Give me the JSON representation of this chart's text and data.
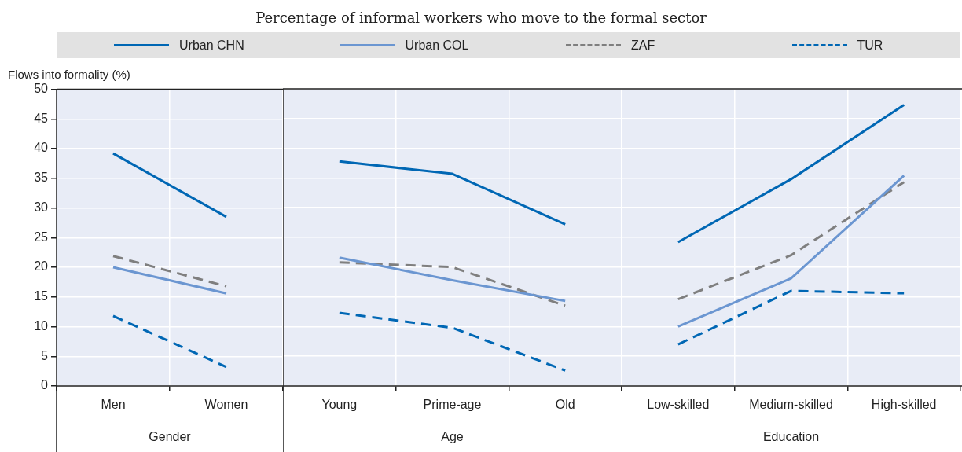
{
  "chart_data": [
    {
      "type": "line",
      "ylabel": "Flows into formality (%)",
      "xlabel": "Gender",
      "categories": [
        "Men",
        "Women"
      ],
      "ylim": [
        0,
        50
      ],
      "yticks": [
        0,
        5,
        10,
        15,
        20,
        25,
        30,
        35,
        40,
        45,
        50
      ],
      "grid": true,
      "legend": "top",
      "marker": "none",
      "series": [
        {
          "name": "Urban CHN",
          "color": "#0067b4",
          "line_style": "solid",
          "values": [
            39.2,
            28.5
          ]
        },
        {
          "name": "Urban COL",
          "color": "#6b96d1",
          "line_style": "solid",
          "values": [
            20.0,
            15.6
          ]
        },
        {
          "name": "ZAF",
          "color": "#7f7f7f",
          "line_style": "dashed",
          "values": [
            21.9,
            16.8
          ]
        },
        {
          "name": "TUR",
          "color": "#0067b4",
          "line_style": "dashed",
          "values": [
            11.8,
            3.2
          ]
        }
      ]
    },
    {
      "type": "line",
      "subtitle": "Percentage of informal workers who move to the formal sector",
      "xlabel": "Age",
      "categories": [
        "Young",
        "Prime-age",
        "Old"
      ],
      "ylim": [
        0,
        50
      ],
      "yticks": [
        0,
        5,
        10,
        15,
        20,
        25,
        30,
        35,
        40,
        45,
        50
      ],
      "grid": true,
      "tick_labels": "x",
      "marker": "none",
      "series": [
        {
          "color": "#0067b4",
          "line_style": "solid",
          "values": [
            37.8,
            35.7,
            27.2
          ]
        },
        {
          "color": "#6b96d1",
          "line_style": "solid",
          "values": [
            21.6,
            17.8,
            14.3
          ]
        },
        {
          "color": "#7f7f7f",
          "line_style": "dashed",
          "values": [
            20.8,
            20.0,
            13.5
          ]
        },
        {
          "color": "#0067b4",
          "line_style": "dashed",
          "values": [
            12.3,
            9.8,
            2.6
          ]
        }
      ]
    },
    {
      "type": "line",
      "xlabel": "Education",
      "categories": [
        "Low-skilled",
        "Medium-skilled",
        "High-skilled"
      ],
      "ylim": [
        0,
        50
      ],
      "yticks": [
        0,
        5,
        10,
        15,
        20,
        25,
        30,
        35,
        40,
        45,
        50
      ],
      "grid": true,
      "tick_labels": "x",
      "marker": "none",
      "series": [
        {
          "color": "#0067b4",
          "line_style": "solid",
          "values": [
            24.2,
            34.8,
            47.3
          ]
        },
        {
          "color": "#6b96d1",
          "line_style": "solid",
          "values": [
            10.0,
            18.1,
            35.4
          ]
        },
        {
          "color": "#7f7f7f",
          "line_style": "dashed",
          "values": [
            14.6,
            22.0,
            34.3
          ]
        },
        {
          "color": "#0067b4",
          "line_style": "dashed",
          "values": [
            7.0,
            16.0,
            15.6
          ]
        }
      ]
    }
  ]
}
